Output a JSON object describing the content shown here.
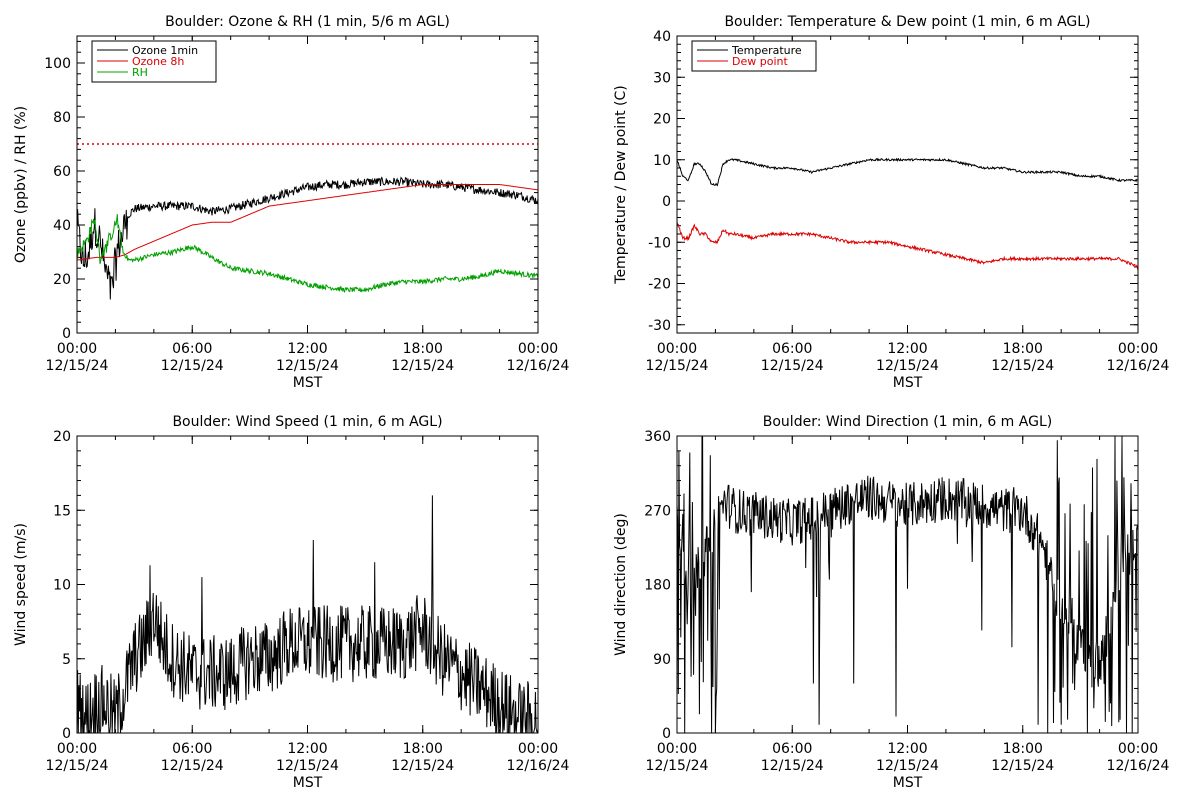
{
  "chart_data": [
    {
      "type": "line",
      "title": "Boulder: Ozone & RH (1 min, 5/6 m AGL)",
      "ylabel": "Ozone (ppbv) / RH (%)",
      "xlabel": "MST",
      "ylim": [
        0,
        110
      ],
      "yticks": [
        0,
        20,
        40,
        60,
        80,
        100
      ],
      "xlim_hours": [
        0,
        24
      ],
      "xticks": [
        {
          "time": "00:00",
          "date": "12/15/24"
        },
        {
          "time": "06:00",
          "date": "12/15/24"
        },
        {
          "time": "12:00",
          "date": "12/15/24"
        },
        {
          "time": "18:00",
          "date": "12/15/24"
        },
        {
          "time": "00:00",
          "date": "12/16/24"
        }
      ],
      "reference_line": {
        "y": 70,
        "color": "#dd0000",
        "style": "dotted"
      },
      "legend_position": "top-left",
      "series": [
        {
          "name": "Ozone 1min",
          "color": "#000000",
          "noise": 1.6,
          "jump_start": 0,
          "jump_end": 2.6,
          "jump_amp": 7,
          "x": [
            0,
            0.3,
            0.6,
            0.9,
            1.2,
            1.5,
            1.8,
            2.1,
            2.4,
            2.7,
            3,
            4,
            5,
            6,
            7,
            8,
            9,
            10,
            11,
            12,
            13,
            14,
            15,
            16,
            17,
            18,
            19,
            20,
            21,
            22,
            23,
            24
          ],
          "y": [
            40,
            26,
            29,
            41,
            34,
            22,
            16,
            30,
            38,
            44,
            46,
            47,
            47,
            47,
            45,
            46,
            48,
            50,
            52,
            54,
            55,
            55,
            56,
            56,
            56,
            55,
            55,
            54,
            53,
            52,
            51,
            49
          ]
        },
        {
          "name": "Ozone 8h",
          "color": "#dd0000",
          "noise": 0,
          "x": [
            0,
            1,
            2,
            2.5,
            3,
            4,
            5,
            6,
            7,
            8,
            9,
            10,
            12,
            14,
            16,
            18,
            20,
            22,
            24
          ],
          "y": [
            27,
            28,
            28,
            29,
            31,
            34,
            37,
            40,
            41,
            41,
            44,
            47,
            49,
            51,
            53,
            55,
            55,
            55,
            53
          ]
        },
        {
          "name": "RH",
          "color": "#00a000",
          "noise": 0.9,
          "jump_start": 0,
          "jump_end": 2.4,
          "jump_amp": 2,
          "x": [
            0,
            0.3,
            0.6,
            0.9,
            1.2,
            1.5,
            1.8,
            2.1,
            2.4,
            2.7,
            3,
            4,
            5,
            6,
            6.3,
            7,
            8,
            9,
            10,
            11,
            12,
            13,
            14,
            15,
            16,
            17,
            18,
            19,
            20,
            21,
            22,
            23,
            24
          ],
          "y": [
            30,
            32,
            36,
            42,
            28,
            32,
            36,
            42,
            30,
            27,
            27,
            29,
            30,
            32,
            31,
            28,
            24,
            23,
            22,
            20,
            18,
            17,
            16,
            16,
            18,
            19,
            19,
            20,
            20,
            21,
            23,
            22,
            21
          ]
        }
      ]
    },
    {
      "type": "line",
      "title": "Boulder: Temperature & Dew point (1 min, 6 m AGL)",
      "ylabel": "Temperature / Dew point (C)",
      "xlabel": "MST",
      "ylim": [
        -32,
        40
      ],
      "yticks": [
        -30,
        -20,
        -10,
        0,
        10,
        20,
        30,
        40
      ],
      "xlim_hours": [
        0,
        24
      ],
      "xticks": [
        {
          "time": "00:00",
          "date": "12/15/24"
        },
        {
          "time": "06:00",
          "date": "12/15/24"
        },
        {
          "time": "12:00",
          "date": "12/15/24"
        },
        {
          "time": "18:00",
          "date": "12/15/24"
        },
        {
          "time": "00:00",
          "date": "12/16/24"
        }
      ],
      "legend_position": "top-left",
      "series": [
        {
          "name": "Temperature",
          "color": "#000000",
          "noise": 0.25,
          "x": [
            0,
            0.3,
            0.6,
            0.9,
            1.2,
            1.5,
            1.8,
            2.1,
            2.4,
            2.7,
            3,
            4,
            5,
            6,
            7,
            8,
            9,
            10,
            11,
            12,
            13,
            14,
            15,
            16,
            17,
            18,
            19,
            20,
            21,
            22,
            23,
            24
          ],
          "y": [
            10,
            6,
            5,
            9,
            9,
            7,
            4,
            4,
            9,
            10,
            10,
            9,
            8,
            8,
            7,
            8,
            9,
            10,
            10,
            10,
            10,
            10,
            9,
            8,
            8,
            7,
            7,
            7,
            6,
            6,
            5,
            5
          ]
        },
        {
          "name": "Dew point",
          "color": "#dd0000",
          "noise": 0.35,
          "x": [
            0,
            0.3,
            0.6,
            0.9,
            1.2,
            1.5,
            1.8,
            2.1,
            2.4,
            2.7,
            3,
            4,
            5,
            6,
            7,
            8,
            9,
            10,
            11,
            12,
            13,
            14,
            15,
            16,
            17,
            18,
            19,
            20,
            21,
            22,
            23,
            24
          ],
          "y": [
            -5,
            -9,
            -9,
            -6,
            -8,
            -8,
            -10,
            -10,
            -7,
            -8,
            -8,
            -9,
            -8,
            -8,
            -8,
            -9,
            -10,
            -10,
            -10,
            -11,
            -12,
            -13,
            -14,
            -15,
            -14,
            -14,
            -14,
            -14,
            -14,
            -14,
            -14,
            -16
          ]
        }
      ]
    },
    {
      "type": "line",
      "title": "Boulder: Wind Speed (1 min, 6 m AGL)",
      "ylabel": "Wind speed (m/s)",
      "xlabel": "MST",
      "ylim": [
        0,
        20
      ],
      "yticks": [
        0,
        5,
        10,
        15,
        20
      ],
      "xlim_hours": [
        0,
        24
      ],
      "xticks": [
        {
          "time": "00:00",
          "date": "12/15/24"
        },
        {
          "time": "06:00",
          "date": "12/15/24"
        },
        {
          "time": "12:00",
          "date": "12/15/24"
        },
        {
          "time": "18:00",
          "date": "12/15/24"
        },
        {
          "time": "00:00",
          "date": "12/16/24"
        }
      ],
      "series": [
        {
          "color": "#000000",
          "noise": 2.6,
          "spikes": [
            [
              3.8,
              11.3
            ],
            [
              18.5,
              16.0
            ],
            [
              12.3,
              13.0
            ],
            [
              15.5,
              11.5
            ],
            [
              6.5,
              10.5
            ]
          ],
          "x": [
            0,
            0.5,
            1,
            1.5,
            2,
            2.5,
            3,
            3.5,
            4,
            4.5,
            5,
            6,
            7,
            8,
            9,
            10,
            11,
            12,
            13,
            14,
            15,
            16,
            17,
            18,
            19,
            20,
            21,
            22,
            23,
            24
          ],
          "y": [
            2,
            1,
            2,
            2,
            1,
            3,
            5,
            6,
            8,
            6,
            5,
            4,
            4,
            4,
            5,
            5,
            6,
            6,
            6,
            6,
            6,
            6,
            6,
            7,
            5,
            4,
            3,
            2,
            1,
            1
          ]
        }
      ]
    },
    {
      "type": "line",
      "title": "Boulder: Wind Direction (1 min, 6 m AGL)",
      "ylabel": "Wind direction (deg)",
      "xlabel": "MST",
      "ylim": [
        0,
        360
      ],
      "yticks": [
        0,
        90,
        180,
        270,
        360
      ],
      "xlim_hours": [
        0,
        24
      ],
      "xticks": [
        {
          "time": "00:00",
          "date": "12/15/24"
        },
        {
          "time": "06:00",
          "date": "12/15/24"
        },
        {
          "time": "12:00",
          "date": "12/15/24"
        },
        {
          "time": "18:00",
          "date": "12/15/24"
        },
        {
          "time": "00:00",
          "date": "12/16/24"
        }
      ],
      "series": [
        {
          "color": "#000000",
          "noise": 28,
          "spikes": [
            [
              7.4,
              10
            ],
            [
              7.1,
              60
            ],
            [
              6.7,
              200
            ],
            [
              11.4,
              20
            ],
            [
              9.2,
              60
            ],
            [
              18.8,
              10
            ],
            [
              19.3,
              0
            ],
            [
              20,
              10
            ],
            [
              20.6,
              60
            ],
            [
              21.7,
              30
            ],
            [
              22.8,
              360
            ],
            [
              23.4,
              0
            ],
            [
              1.8,
              0
            ],
            [
              0.4,
              0
            ],
            [
              1.3,
              360
            ],
            [
              2.0,
              0
            ]
          ],
          "wild_start": 0,
          "wild_end": 2.2,
          "wild_start2": 19.5,
          "wild_end2": 24,
          "x": [
            0,
            0.5,
            1,
            1.5,
            2,
            2.5,
            3,
            4,
            5,
            6,
            7,
            8,
            9,
            10,
            11,
            12,
            13,
            14,
            15,
            16,
            17,
            18,
            19,
            20,
            21,
            22,
            23,
            24
          ],
          "y": [
            270,
            180,
            200,
            220,
            260,
            280,
            270,
            265,
            260,
            255,
            260,
            270,
            280,
            285,
            280,
            275,
            280,
            285,
            280,
            275,
            270,
            270,
            230,
            150,
            110,
            80,
            200,
            230
          ]
        }
      ]
    }
  ]
}
